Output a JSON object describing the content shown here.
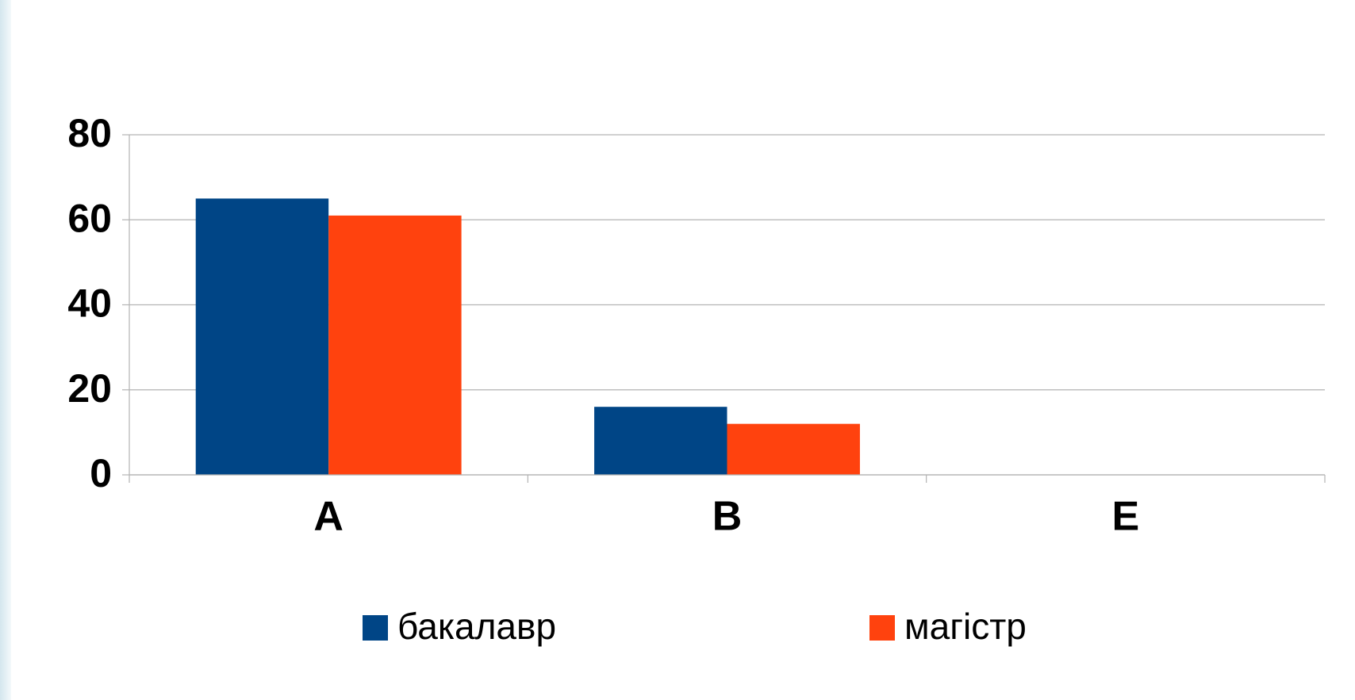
{
  "chart_data": {
    "type": "bar",
    "categories": [
      "A",
      "B",
      "E"
    ],
    "series": [
      {
        "name": "бакалавр",
        "color": "#004586",
        "values": [
          65,
          16,
          0
        ]
      },
      {
        "name": "магістр",
        "color": "#ff420e",
        "values": [
          61,
          12,
          0
        ]
      }
    ],
    "ylim": [
      0,
      80
    ],
    "yticks": [
      0,
      20,
      40,
      60,
      80
    ],
    "grid": true,
    "legend": "bottom"
  }
}
